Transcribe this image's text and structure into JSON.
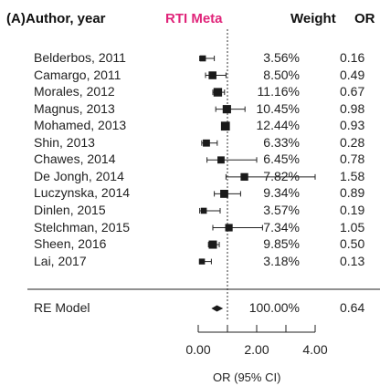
{
  "panel_label": "(A)",
  "header": {
    "author": "Author, year",
    "meta_title": "RTI Meta",
    "weight": "Weight",
    "or": "OR"
  },
  "chart_data": {
    "type": "forest",
    "xlabel": "OR (95% CI)",
    "xticks": [
      "0.00",
      "2.00",
      "4.00"
    ],
    "xlim": [
      0,
      4
    ],
    "reference_line": 1,
    "studies": [
      {
        "label": "Belderbos, 2011",
        "weight": "3.56%",
        "or": "0.16",
        "est": 0.16,
        "lo": 0.05,
        "hi": 0.55
      },
      {
        "label": "Camargo, 2011",
        "weight": "8.50%",
        "or": "0.49",
        "est": 0.49,
        "lo": 0.25,
        "hi": 0.95
      },
      {
        "label": "Morales, 2012",
        "weight": "11.16%",
        "or": "0.67",
        "est": 0.67,
        "lo": 0.5,
        "hi": 0.9
      },
      {
        "label": "Magnus, 2013",
        "weight": "10.45%",
        "or": "0.98",
        "est": 0.98,
        "lo": 0.6,
        "hi": 1.6
      },
      {
        "label": "Mohamed, 2013",
        "weight": "12.44%",
        "or": "0.93",
        "est": 0.93,
        "lo": 0.85,
        "hi": 1.02
      },
      {
        "label": "Shin, 2013",
        "weight": "6.33%",
        "or": "0.28",
        "est": 0.28,
        "lo": 0.12,
        "hi": 0.65
      },
      {
        "label": "Chawes, 2014",
        "weight": "6.45%",
        "or": "0.78",
        "est": 0.78,
        "lo": 0.3,
        "hi": 2.0
      },
      {
        "label": "De Jongh, 2014",
        "weight": "7.82%",
        "or": "1.58",
        "est": 1.58,
        "lo": 0.95,
        "hi": 4.0
      },
      {
        "label": "Luczynska, 2014",
        "weight": "9.34%",
        "or": "0.89",
        "est": 0.89,
        "lo": 0.55,
        "hi": 1.45
      },
      {
        "label": "Dinlen, 2015",
        "weight": "3.57%",
        "or": "0.19",
        "est": 0.19,
        "lo": 0.05,
        "hi": 0.75
      },
      {
        "label": "Stelchman, 2015",
        "weight": "7.34%",
        "or": "1.05",
        "est": 1.05,
        "lo": 0.5,
        "hi": 2.2
      },
      {
        "label": "Sheen, 2016",
        "weight": "9.85%",
        "or": "0.50",
        "est": 0.5,
        "lo": 0.35,
        "hi": 0.72
      },
      {
        "label": "Lai, 2017",
        "weight": "3.18%",
        "or": "0.13",
        "est": 0.13,
        "lo": 0.04,
        "hi": 0.45
      }
    ],
    "summary": {
      "label": "RE Model",
      "weight": "100.00%",
      "or": "0.64",
      "est": 0.64,
      "lo": 0.45,
      "hi": 0.85
    }
  }
}
